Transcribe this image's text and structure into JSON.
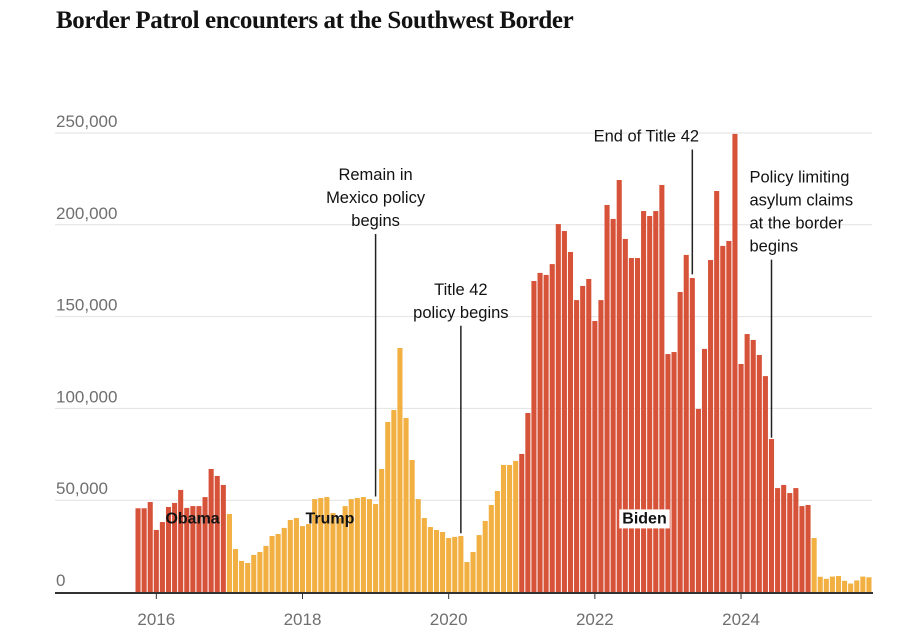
{
  "title": "Border Patrol encounters at the Southwest Border",
  "colors": {
    "democrat": "#d6533a",
    "republican": "#f1b041",
    "axis": "#333333",
    "grid": "#e2e2e2",
    "text": "#121212",
    "tick_text": "#6f6f6f"
  },
  "chart_data": {
    "type": "bar",
    "title": "Border Patrol encounters at the Southwest Border",
    "xlabel": "",
    "ylabel": "",
    "ylim": [
      0,
      250000
    ],
    "grid": true,
    "start_month": "2015-10",
    "end_month": "2025-10",
    "y_ticks": [
      {
        "value": 0,
        "label": "0"
      },
      {
        "value": 50000,
        "label": "50,000"
      },
      {
        "value": 100000,
        "label": "100,000"
      },
      {
        "value": 150000,
        "label": "150,000"
      },
      {
        "value": 200000,
        "label": "200,000"
      },
      {
        "value": 250000,
        "label": "250,000"
      }
    ],
    "x_ticks": [
      {
        "month_index": 3,
        "label": "2016"
      },
      {
        "month_index": 27,
        "label": "2018"
      },
      {
        "month_index": 51,
        "label": "2020"
      },
      {
        "month_index": 75,
        "label": "2022"
      },
      {
        "month_index": 99,
        "label": "2024"
      }
    ],
    "administrations": [
      {
        "name": "Obama",
        "color_key": "democrat",
        "from_index": 0,
        "to_index": 14,
        "label_month_index": 5,
        "label_value": 33000
      },
      {
        "name": "Trump",
        "color_key": "republican",
        "from_index": 15,
        "to_index": 62,
        "label_month_index": 28,
        "label_value": 33000
      },
      {
        "name": "Biden",
        "color_key": "democrat",
        "from_index": 63,
        "to_index": 110,
        "label_month_index": 80,
        "label_value": 33000,
        "boxed": true
      },
      {
        "name": "",
        "color_key": "republican",
        "from_index": 111,
        "to_index": 120
      }
    ],
    "values": [
      45600,
      45600,
      49000,
      33800,
      38100,
      46300,
      48500,
      55600,
      45800,
      46800,
      46800,
      51700,
      67000,
      63200,
      58300,
      42500,
      23400,
      16900,
      15800,
      20200,
      21800,
      25100,
      30500,
      31600,
      34900,
      39200,
      40300,
      35900,
      37000,
      50600,
      51200,
      51700,
      43000,
      40300,
      46800,
      50600,
      51200,
      51700,
      50600,
      47900,
      67000,
      92600,
      99100,
      132900,
      94800,
      71900,
      50600,
      40300,
      35400,
      33800,
      32700,
      29400,
      30000,
      30500,
      16300,
      21800,
      31000,
      38700,
      47400,
      55000,
      69200,
      69200,
      71400,
      75200,
      97500,
      169400,
      173800,
      172700,
      178600,
      200400,
      196600,
      185200,
      159000,
      166700,
      170500,
      147600,
      159000,
      210800,
      203200,
      224400,
      192300,
      181900,
      181900,
      207500,
      204800,
      207500,
      221700,
      129600,
      130700,
      163400,
      183600,
      171000,
      99700,
      132400,
      180800,
      218400,
      188500,
      191200,
      249500,
      124200,
      140500,
      137300,
      129100,
      117600,
      83300,
      56600,
      58300,
      53900,
      56600,
      46800,
      47400,
      29400,
      8300,
      7200,
      8400,
      8700,
      6100,
      4600,
      6300,
      8400,
      8000
    ],
    "annotations": [
      {
        "lines": [
          "Remain in",
          "Mexico policy",
          "begins"
        ],
        "month_index": 39,
        "line_top_value": 195000,
        "line_bottom_value": 52000,
        "align": "middle"
      },
      {
        "lines": [
          "Title 42",
          "policy begins"
        ],
        "month_index": 53,
        "line_top_value": 145000,
        "line_bottom_value": 32000,
        "align": "middle"
      },
      {
        "lines": [
          "End of Title 42"
        ],
        "month_index": 91,
        "line_top_value": 241000,
        "line_bottom_value": 173000,
        "align": "end"
      },
      {
        "lines": [
          "Policy limiting",
          "asylum claims",
          "at the border",
          "begins"
        ],
        "month_index": 104,
        "line_top_value": 181000,
        "line_bottom_value": 84000,
        "align": "start"
      }
    ]
  }
}
